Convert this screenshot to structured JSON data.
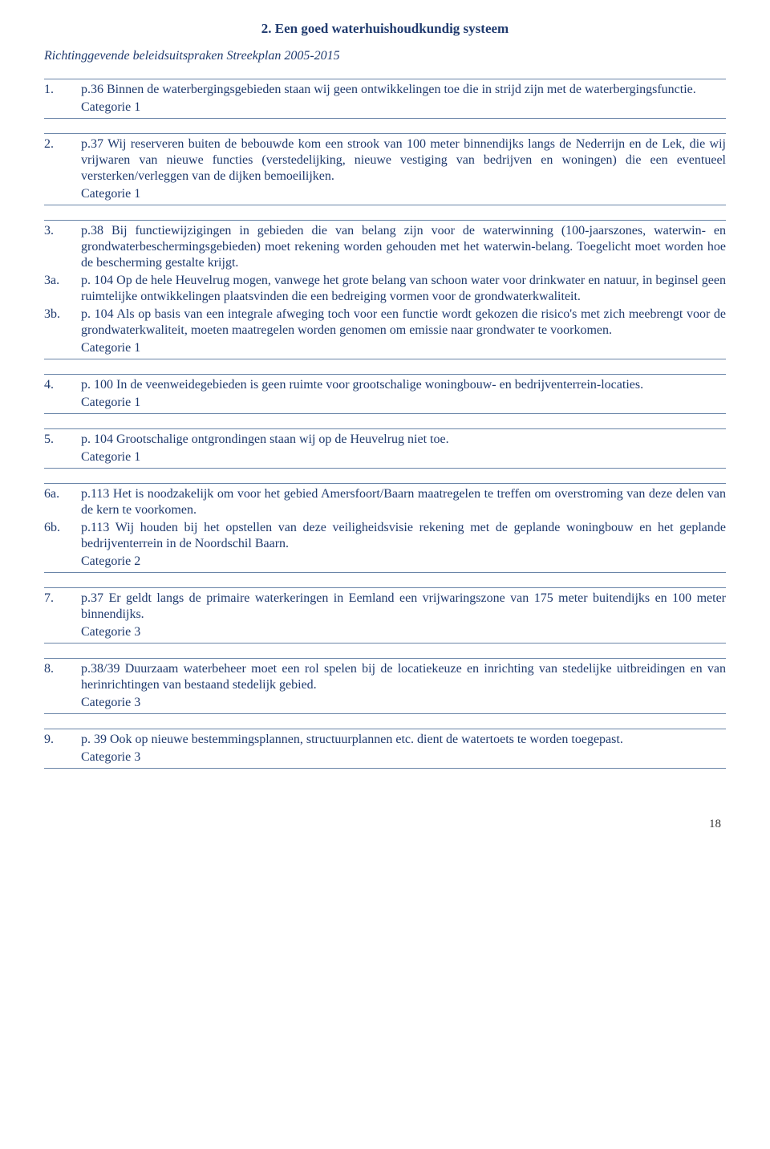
{
  "colors": {
    "text": "#1f3a6e",
    "rule": "#6a85a8",
    "background": "#ffffff"
  },
  "typography": {
    "font_family": "Times New Roman",
    "body_size_pt": 12,
    "title_size_pt": 12,
    "title_weight": "bold",
    "subtitle_style": "italic"
  },
  "header": {
    "title": "2. Een goed waterhuishoudkundig systeem",
    "subtitle": "Richtinggevende beleidsuitspraken Streekplan 2005-2015"
  },
  "blocks": [
    {
      "items": [
        {
          "num": "1.",
          "text": "p.36 Binnen de waterbergingsgebieden staan wij geen ontwikkelingen toe die in strijd zijn met de waterbergingsfunctie."
        }
      ],
      "category": "Categorie 1"
    },
    {
      "items": [
        {
          "num": "2.",
          "text": "p.37 Wij reserveren buiten de bebouwde kom een strook van 100 meter binnendijks langs de Nederrijn en de Lek, die wij vrijwaren van nieuwe functies (verstedelijking, nieuwe vestiging van bedrijven en woningen) die een eventueel versterken/verleggen van de dijken bemoeilijken."
        }
      ],
      "category": "Categorie 1"
    },
    {
      "items": [
        {
          "num": "3.",
          "text": "p.38 Bij functiewijzigingen in gebieden die van belang zijn voor de waterwinning (100-jaarszones, waterwin- en grondwaterbeschermingsgebieden) moet rekening worden gehouden met het waterwin-belang. Toegelicht moet worden hoe de bescherming gestalte krijgt."
        },
        {
          "num": "3a.",
          "text": "p. 104 Op de hele Heuvelrug mogen, vanwege het grote belang van schoon water voor drinkwater en natuur, in beginsel geen ruimtelijke ontwikkelingen plaatsvinden die een bedreiging vormen voor de grondwaterkwaliteit."
        },
        {
          "num": "3b.",
          "text": "p. 104 Als op basis van een integrale afweging toch voor een functie wordt gekozen die risico's met zich meebrengt voor de grondwaterkwaliteit, moeten maatregelen worden genomen om emissie naar grondwater te voorkomen."
        }
      ],
      "category": "Categorie 1"
    },
    {
      "items": [
        {
          "num": "4.",
          "text": "p. 100 In de veenweidegebieden is geen ruimte voor grootschalige woningbouw- en bedrijventerrein-locaties."
        }
      ],
      "category": "Categorie 1"
    },
    {
      "items": [
        {
          "num": "5.",
          "text": "p. 104 Grootschalige ontgrondingen staan wij op de Heuvelrug niet toe."
        }
      ],
      "category": "Categorie 1"
    },
    {
      "items": [
        {
          "num": "6a.",
          "text": "p.113 Het is noodzakelijk om voor het gebied Amersfoort/Baarn maatregelen te treffen om overstroming van deze delen van de kern te voorkomen."
        },
        {
          "num": "6b.",
          "text": "p.113 Wij houden bij het opstellen van deze veiligheidsvisie rekening met de geplande woningbouw en het geplande bedrijventerrein in de Noordschil Baarn."
        }
      ],
      "category": "Categorie 2"
    },
    {
      "items": [
        {
          "num": "7.",
          "text": "p.37 Er geldt langs de primaire waterkeringen in Eemland een vrijwaringszone van 175 meter buitendijks en 100 meter binnendijks."
        }
      ],
      "category": "Categorie 3"
    },
    {
      "items": [
        {
          "num": "8.",
          "text": "p.38/39 Duurzaam waterbeheer moet een rol spelen bij de locatiekeuze en inrichting van stedelijke uitbreidingen en van herinrichtingen van bestaand stedelijk gebied."
        }
      ],
      "category": "Categorie 3"
    },
    {
      "items": [
        {
          "num": "9.",
          "text": "p. 39 Ook op nieuwe bestemmingsplannen, structuurplannen etc. dient de watertoets te worden toegepast."
        }
      ],
      "category": "Categorie 3"
    }
  ],
  "page_number": "18"
}
